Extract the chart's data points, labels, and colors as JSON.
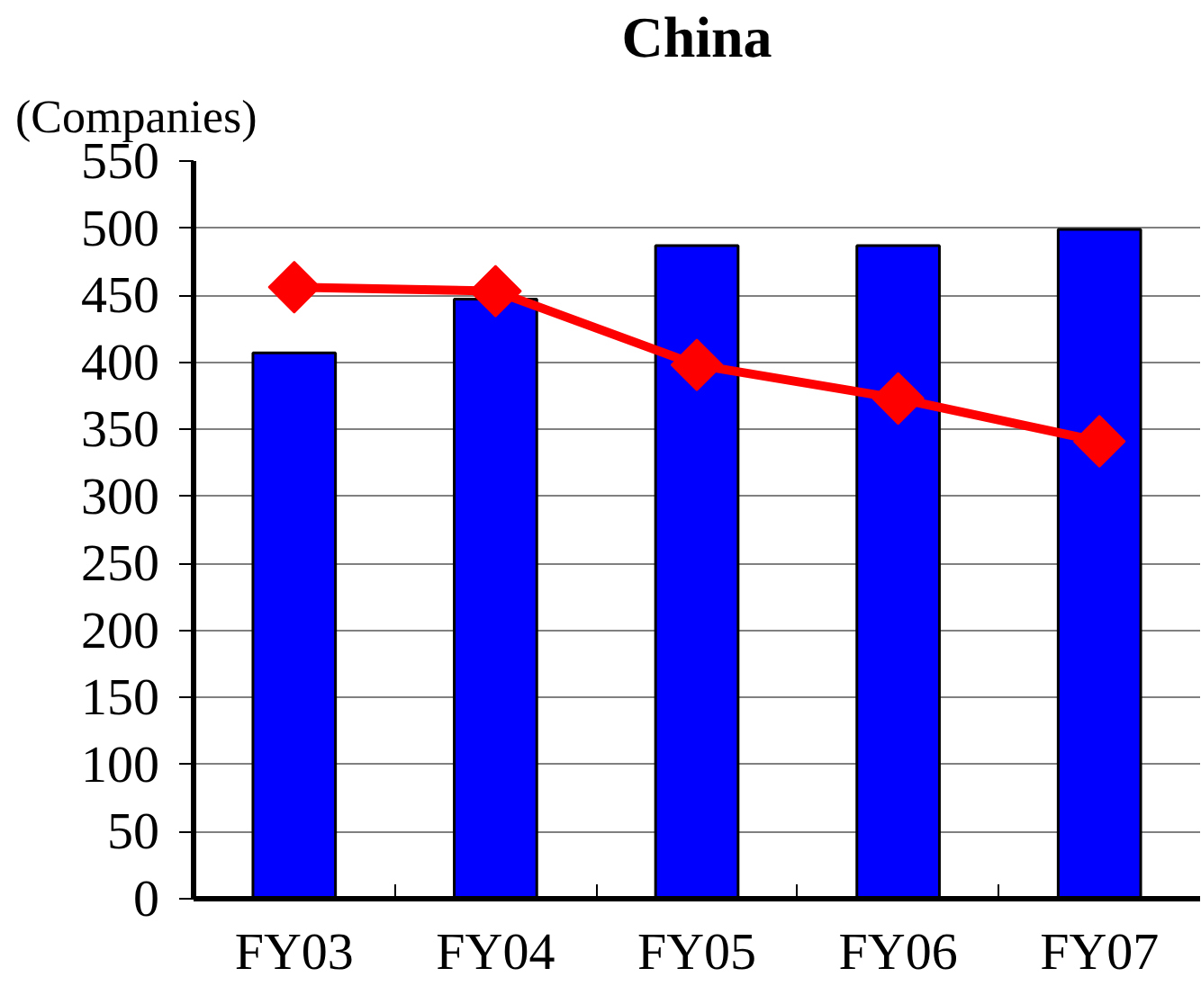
{
  "chart_data": {
    "type": "bar",
    "title": "China",
    "ylabel": "(Companies)",
    "categories": [
      "FY03",
      "FY04",
      "FY05",
      "FY06",
      "FY07"
    ],
    "series": [
      {
        "color": "#0000ff",
        "values": [
          407,
          447,
          487,
          487,
          499
        ]
      },
      {
        "type": "line",
        "color": "#ff0000",
        "values": [
          456,
          453,
          398,
          373,
          341
        ]
      }
    ],
    "ylim": [
      0,
      550
    ],
    "yticks": [
      0,
      50,
      100,
      150,
      200,
      250,
      300,
      350,
      400,
      450,
      500,
      550
    ],
    "grid": "y",
    "marker": "diamond",
    "line_style": "solid"
  }
}
